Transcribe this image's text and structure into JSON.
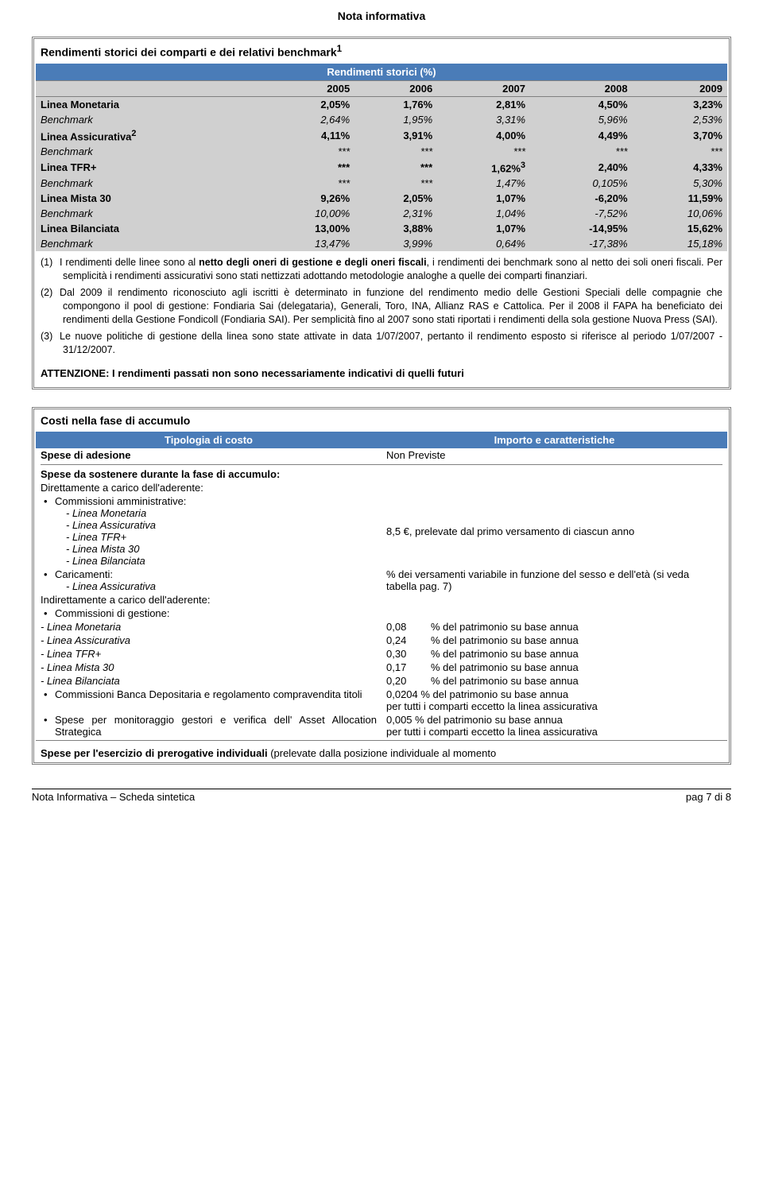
{
  "page_header": "Nota informativa",
  "rendimenti_box": {
    "title": "Rendimenti storici dei comparti e dei relativi benchmark",
    "title_sup": "1",
    "subtitle": "Rendimenti storici (%)",
    "years": [
      "2005",
      "2006",
      "2007",
      "2008",
      "2009"
    ],
    "rows": [
      {
        "type": "primary",
        "label": "Linea Monetaria",
        "cells": [
          "2,05%",
          "1,76%",
          "2,81%",
          "4,50%",
          "3,23%"
        ]
      },
      {
        "type": "bench",
        "label": "Benchmark",
        "cells": [
          "2,64%",
          "1,95%",
          "3,31%",
          "5,96%",
          "2,53%"
        ]
      },
      {
        "type": "primary",
        "label": "Linea Assicurativa",
        "label_sup": "2",
        "cells": [
          "4,11%",
          "3,91%",
          "4,00%",
          "4,49%",
          "3,70%"
        ]
      },
      {
        "type": "bench",
        "label": "Benchmark",
        "cells": [
          "***",
          "***",
          "***",
          "***",
          "***"
        ]
      },
      {
        "type": "primary",
        "label": "Linea TFR+",
        "cells": [
          "***",
          "***",
          "1,62%",
          "2,40%",
          "4,33%"
        ],
        "cell_sup": {
          "2": "3"
        }
      },
      {
        "type": "bench",
        "label": "Benchmark",
        "cells": [
          "***",
          "***",
          "1,47%",
          "0,105%",
          "5,30%"
        ]
      },
      {
        "type": "primary",
        "label": "Linea Mista 30",
        "cells": [
          "9,26%",
          "2,05%",
          "1,07%",
          "-6,20%",
          "11,59%"
        ]
      },
      {
        "type": "bench",
        "label": "Benchmark",
        "cells": [
          "10,00%",
          "2,31%",
          "1,04%",
          "-7,52%",
          "10,06%"
        ]
      },
      {
        "type": "primary",
        "label": "Linea Bilanciata",
        "cells": [
          "13,00%",
          "3,88%",
          "1,07%",
          "-14,95%",
          "15,62%"
        ]
      },
      {
        "type": "bench",
        "label": "Benchmark",
        "cells": [
          "13,47%",
          "3,99%",
          "0,64%",
          "-17,38%",
          "15,18%"
        ]
      }
    ],
    "notes": [
      {
        "marker": "(1)",
        "text_pre": "I rendimenti delle linee sono al ",
        "text_bold": "netto degli oneri di gestione e degli oneri fiscali",
        "text_post": ", i rendimenti dei benchmark sono al netto dei soli oneri fiscali. Per semplicità i rendimenti assicurativi sono stati nettizzati adottando metodologie analoghe a quelle dei comparti finanziari."
      },
      {
        "marker": "(2)",
        "text": "Dal 2009 il rendimento riconosciuto agli iscritti è determinato in funzione del rendimento medio delle Gestioni Speciali delle compagnie che compongono il pool di gestione: Fondiaria Sai (delegataria), Generali, Toro, INA, Allianz RAS e Cattolica. Per il 2008 il FAPA ha beneficiato dei rendimenti della Gestione Fondicoll (Fondiaria SAI). Per semplicità fino al 2007 sono stati riportati i rendimenti della sola gestione Nuova Press (SAI)."
      },
      {
        "marker": "(3)",
        "text": "Le nuove politiche di gestione della linea sono state attivate in data 1/07/2007, pertanto il rendimento esposto si riferisce al periodo 1/07/2007 - 31/12/2007."
      }
    ],
    "attention": "ATTENZIONE: I rendimenti passati non sono necessariamente indicativi di quelli futuri"
  },
  "costi_box": {
    "title": "Costi nella fase di accumulo",
    "col_left": "Tipologia di costo",
    "col_right": "Importo e caratteristiche",
    "rows": {
      "spese_adesione_lbl": "Spese di adesione",
      "spese_adesione_val": "Non Previste",
      "spese_durante_lbl": "Spese da sostenere durante la fase di accumulo:",
      "dirett_lbl": "Direttamente a carico dell'aderente:",
      "comm_amm_lbl": "Commissioni amministrative:",
      "comm_amm_items": [
        "- Linea Monetaria",
        "- Linea Assicurativa",
        "- Linea TFR+",
        "- Linea Mista 30",
        "- Linea Bilanciata"
      ],
      "comm_amm_val": "8,5 €, prelevate dal primo versamento di ciascun anno",
      "caricamenti_lbl": "Caricamenti:",
      "caricamenti_item": "- Linea Assicurativa",
      "caricamenti_val": "% dei versamenti variabile in funzione del sesso e dell'età (si veda tabella pag. 7)",
      "indirett_lbl": "Indirettamente a carico dell'aderente:",
      "comm_gest_lbl": "Commissioni di gestione:",
      "gest_items": [
        {
          "label": "- Linea Monetaria",
          "val": "0,08",
          "txt": "% del patrimonio su base annua"
        },
        {
          "label": "- Linea Assicurativa",
          "val": "0,24",
          "txt": "% del patrimonio su base annua"
        },
        {
          "label": "- Linea TFR+",
          "val": "0,30",
          "txt": "% del patrimonio su base annua"
        },
        {
          "label": "- Linea Mista 30",
          "val": "0,17",
          "txt": "% del patrimonio su base annua"
        },
        {
          "label": "- Linea Bilanciata",
          "val": "0,20",
          "txt": "% del patrimonio su base annua"
        }
      ],
      "banca_dep_lbl": "Commissioni Banca Depositaria e regolamento compravendita titoli",
      "banca_dep_val1": "0,0204 % del patrimonio su base annua",
      "banca_dep_val2": "per tutti i comparti eccetto la linea assicurativa",
      "monit_lbl": "Spese per monitoraggio gestori e verifica dell' Asset Allocation Strategica",
      "monit_val1": "0,005 % del patrimonio su base annua",
      "monit_val2": "per tutti i comparti eccetto la linea assicurativa",
      "footer_line_pre": "Spese per l'esercizio di prerogative individuali ",
      "footer_line_post": "(prelevate dalla posizione individuale al momento"
    }
  },
  "page_footer": {
    "left": "Nota Informativa – Scheda sintetica",
    "right": "pag 7 di 8"
  },
  "style": {
    "header_bg": "#4a7cb8",
    "header_fg": "#ffffff",
    "row_bg": "#d0d0d0",
    "border": "#808080",
    "font_base_pt": 10,
    "font_title_pt": 11
  }
}
